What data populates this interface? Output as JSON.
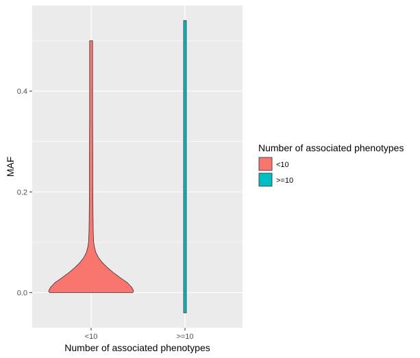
{
  "chart_data": {
    "type": "violin",
    "xlabel": "Number of associated phenotypes",
    "ylabel": "MAF",
    "categories": [
      "<10",
      ">=10"
    ],
    "ylim": [
      -0.07,
      0.57
    ],
    "yticks": [
      0.0,
      0.2,
      0.4
    ],
    "ytick_labels": [
      "0.0",
      "0.2",
      "0.4"
    ],
    "grid": true,
    "legend": {
      "title": "Number of associated phenotypes",
      "position": "right",
      "items": [
        {
          "label": "<10",
          "color": "#F8766D"
        },
        {
          "label": ">=10",
          "color": "#00BFC4"
        }
      ]
    },
    "series": [
      {
        "category": "<10",
        "color": "#F8766D",
        "ymin": 0.0,
        "ymax": 0.5,
        "relative_half_width": [
          [
            0.0,
            0.98
          ],
          [
            0.003,
            1.0
          ],
          [
            0.01,
            0.96
          ],
          [
            0.02,
            0.85
          ],
          [
            0.03,
            0.68
          ],
          [
            0.04,
            0.52
          ],
          [
            0.05,
            0.38
          ],
          [
            0.06,
            0.26
          ],
          [
            0.07,
            0.17
          ],
          [
            0.08,
            0.11
          ],
          [
            0.09,
            0.08
          ],
          [
            0.1,
            0.06
          ],
          [
            0.12,
            0.05
          ],
          [
            0.15,
            0.045
          ],
          [
            0.2,
            0.04
          ],
          [
            0.25,
            0.04
          ],
          [
            0.3,
            0.038
          ],
          [
            0.35,
            0.035
          ],
          [
            0.4,
            0.035
          ],
          [
            0.45,
            0.035
          ],
          [
            0.5,
            0.035
          ]
        ]
      },
      {
        "category": ">=10",
        "color": "#00BFC4",
        "ymin": -0.04,
        "ymax": 0.54,
        "relative_half_width": [
          [
            -0.04,
            0.032
          ],
          [
            0.54,
            0.032
          ]
        ]
      }
    ]
  }
}
